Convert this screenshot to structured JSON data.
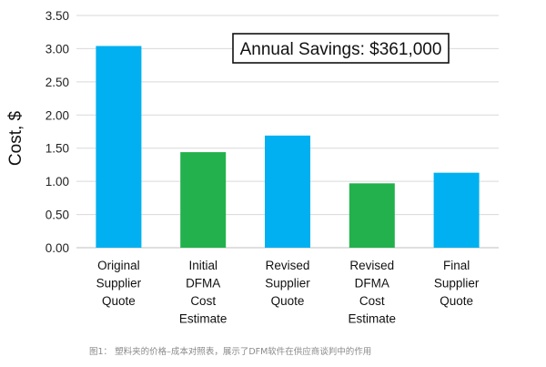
{
  "chart_data": {
    "type": "bar",
    "categories": [
      [
        "Original",
        "Supplier",
        "Quote"
      ],
      [
        "Initial",
        "DFMA",
        "Cost",
        "Estimate"
      ],
      [
        "Revised",
        "Supplier",
        "Quote"
      ],
      [
        "Revised",
        "DFMA",
        "Cost",
        "Estimate"
      ],
      [
        "Final",
        "Supplier",
        "Quote"
      ]
    ],
    "values": [
      3.04,
      1.44,
      1.69,
      0.97,
      1.13
    ],
    "bar_colors": [
      "#00b0f0",
      "#22b14c",
      "#00b0f0",
      "#22b14c",
      "#00b0f0"
    ],
    "ylabel": "Cost, $",
    "xlabel": "",
    "ylim": [
      0,
      3.5
    ],
    "yticks": [
      0,
      0.5,
      1,
      1.5,
      2,
      2.5,
      3,
      3.5
    ],
    "ytick_labels": [
      "0.00",
      "0.50",
      "1.00",
      "1.50",
      "2.00",
      "2.50",
      "3.00",
      "3.50"
    ],
    "grid": true,
    "annotation": "Annual Savings: $361,000"
  },
  "caption": "图1：  塑料夹的价格–成本对照表，展示了DFM软件在供应商谈判中的作用"
}
